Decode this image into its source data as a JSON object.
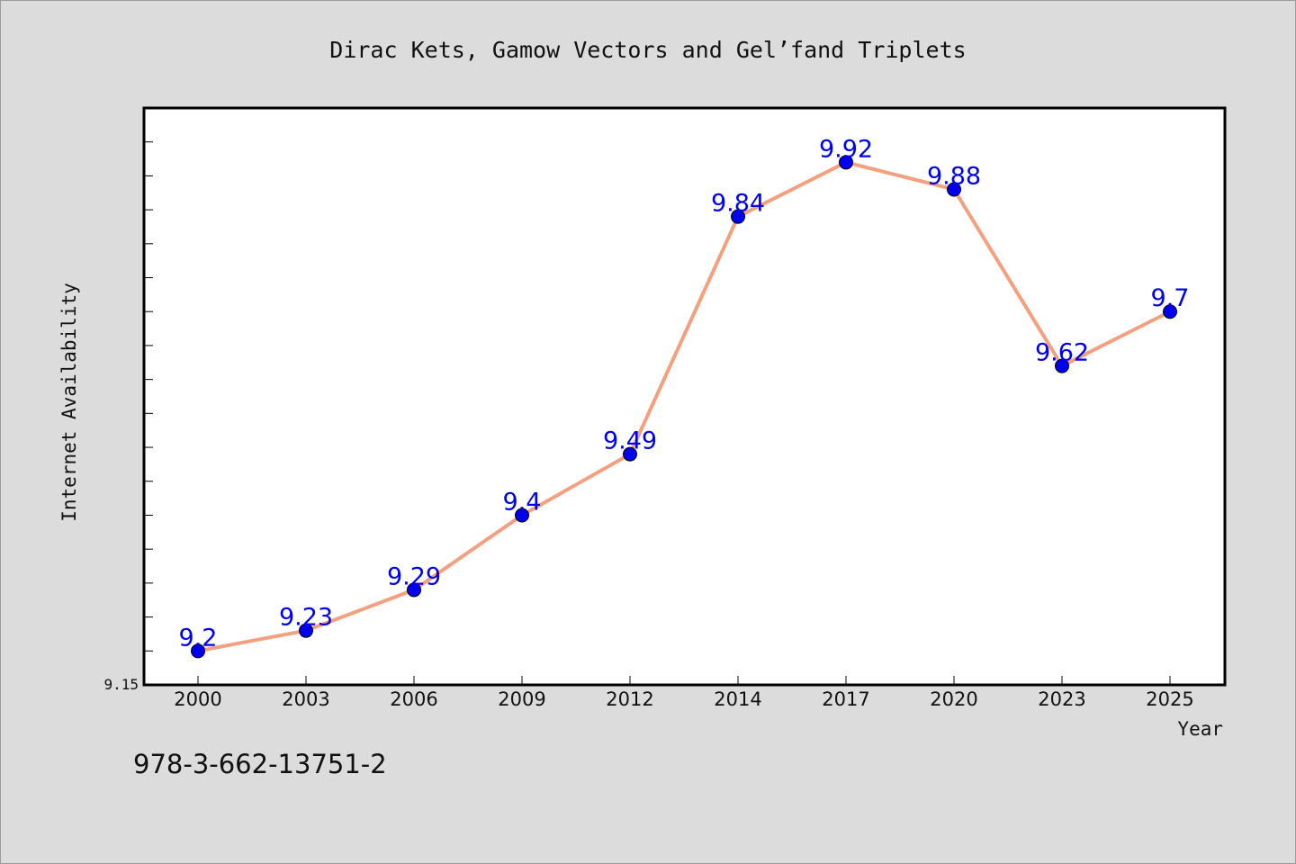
{
  "footer_code": "978-3-662-13751-2",
  "chart_data": {
    "type": "line",
    "title": "Dirac Kets, Gamow Vectors and Gel’fand Triplets",
    "xlabel": "Year",
    "ylabel": "Internet Availability",
    "categories": [
      "2000",
      "2003",
      "2006",
      "2009",
      "2012",
      "2014",
      "2017",
      "2020",
      "2023",
      "2025"
    ],
    "series": [
      {
        "values": [
          9.2,
          9.23,
          9.29,
          9.4,
          9.49,
          9.84,
          9.92,
          9.88,
          9.62,
          9.7
        ],
        "labels": [
          "9.2",
          "9.23",
          "9.29",
          "9.4",
          "9.49",
          "9.84",
          "9.92",
          "9.88",
          "9.62",
          "9.7"
        ]
      }
    ],
    "ylim": [
      9.15,
      10.0
    ],
    "y_tick_labels": [
      "9.15"
    ],
    "grid": false,
    "colors": {
      "line": "#f4a07e",
      "marker": "#0000ee",
      "data_label": "#0000ee",
      "plot_background": "#ffffff",
      "page_background": "#dcdcdc"
    }
  }
}
